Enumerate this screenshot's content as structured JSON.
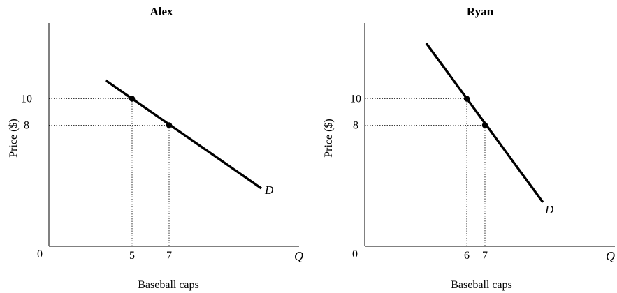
{
  "chart_data": [
    {
      "type": "line",
      "title": "Alex",
      "xlabel": "Baseball caps",
      "ylabel": "Price ($)",
      "x_axis_end_label": "Q",
      "origin_label": "0",
      "curve_label": "D",
      "x_ticks": [
        "5",
        "7"
      ],
      "y_ticks": [
        "10",
        "8"
      ],
      "series": [
        {
          "label": "D",
          "points": [
            {
              "x": 5,
              "y": 10
            },
            {
              "x": 7,
              "y": 8
            }
          ]
        }
      ],
      "highlighted_points": [
        {
          "x": 5,
          "y": 10
        },
        {
          "x": 7,
          "y": 8
        }
      ],
      "guide_lines": "dotted",
      "grid": false
    },
    {
      "type": "line",
      "title": "Ryan",
      "xlabel": "Baseball caps",
      "ylabel": "Price ($)",
      "x_axis_end_label": "Q",
      "origin_label": "0",
      "curve_label": "D",
      "x_ticks": [
        "6",
        "7"
      ],
      "y_ticks": [
        "10",
        "8"
      ],
      "series": [
        {
          "label": "D",
          "points": [
            {
              "x": 6,
              "y": 10
            },
            {
              "x": 7,
              "y": 8
            }
          ]
        }
      ],
      "highlighted_points": [
        {
          "x": 6,
          "y": 10
        },
        {
          "x": 7,
          "y": 8
        }
      ],
      "guide_lines": "dotted",
      "grid": false
    }
  ]
}
